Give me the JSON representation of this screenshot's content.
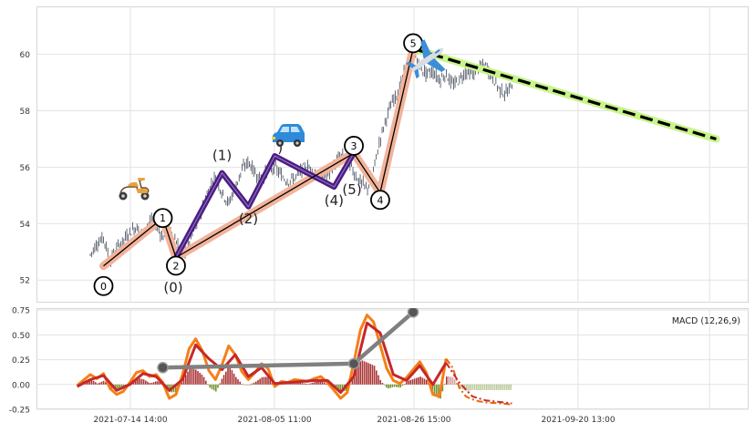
{
  "chart_data": [
    {
      "type": "candlestick",
      "panel": "price",
      "grid": true,
      "ylim": [
        51.2,
        61.7
      ],
      "y_ticks": [
        "52",
        "54",
        "56",
        "58",
        "60"
      ],
      "price_path": [
        [
          "2021-07-08",
          52.9
        ],
        [
          "2021-07-09",
          53.3
        ],
        [
          "2021-07-10",
          53.5
        ],
        [
          "2021-07-11",
          52.7
        ],
        [
          "2021-07-12",
          53.1
        ],
        [
          "2021-07-13",
          53.4
        ],
        [
          "2021-07-14",
          53.7
        ],
        [
          "2021-07-15",
          53.9
        ],
        [
          "2021-07-16",
          53.6
        ],
        [
          "2021-07-17",
          54.1
        ],
        [
          "2021-07-18",
          54.0
        ],
        [
          "2021-07-19",
          53.5
        ],
        [
          "2021-07-20",
          53.8
        ],
        [
          "2021-07-21",
          53.4
        ],
        [
          "2021-07-22",
          52.9
        ],
        [
          "2021-07-23",
          53.3
        ],
        [
          "2021-07-24",
          53.9
        ],
        [
          "2021-07-25",
          54.6
        ],
        [
          "2021-07-26",
          55.2
        ],
        [
          "2021-07-27",
          55.7
        ],
        [
          "2021-07-28",
          55.1
        ],
        [
          "2021-07-29",
          54.7
        ],
        [
          "2021-07-30",
          55.3
        ],
        [
          "2021-07-31",
          55.9
        ],
        [
          "2021-08-01",
          56.2
        ],
        [
          "2021-08-02",
          55.8
        ],
        [
          "2021-08-03",
          55.6
        ],
        [
          "2021-08-04",
          55.9
        ],
        [
          "2021-08-05",
          56.0
        ],
        [
          "2021-08-06",
          55.7
        ],
        [
          "2021-08-07",
          55.5
        ],
        [
          "2021-08-08",
          55.6
        ],
        [
          "2021-08-09",
          55.9
        ],
        [
          "2021-08-10",
          56.0
        ],
        [
          "2021-08-11",
          55.8
        ],
        [
          "2021-08-12",
          55.6
        ],
        [
          "2021-08-13",
          55.7
        ],
        [
          "2021-08-14",
          56.1
        ],
        [
          "2021-08-15",
          56.4
        ],
        [
          "2021-08-16",
          56.3
        ],
        [
          "2021-08-17",
          55.8
        ],
        [
          "2021-08-18",
          55.5
        ],
        [
          "2021-08-19",
          55.2
        ],
        [
          "2021-08-20",
          55.9
        ],
        [
          "2021-08-21",
          57.0
        ],
        [
          "2021-08-22",
          57.8
        ],
        [
          "2021-08-23",
          58.4
        ],
        [
          "2021-08-24",
          58.8
        ],
        [
          "2021-08-25",
          59.6
        ],
        [
          "2021-08-26",
          60.1
        ],
        [
          "2021-08-27",
          59.6
        ],
        [
          "2021-08-28",
          59.3
        ],
        [
          "2021-08-29",
          59.4
        ],
        [
          "2021-08-30",
          59.1
        ],
        [
          "2021-08-31",
          59.3
        ],
        [
          "2021-09-01",
          58.9
        ],
        [
          "2021-09-02",
          59.1
        ],
        [
          "2021-09-03",
          59.4
        ],
        [
          "2021-09-04",
          59.3
        ],
        [
          "2021-09-05",
          59.5
        ],
        [
          "2021-09-06",
          59.6
        ],
        [
          "2021-09-07",
          59.2
        ],
        [
          "2021-09-08",
          58.8
        ],
        [
          "2021-09-09",
          58.6
        ],
        [
          "2021-09-10",
          58.9
        ]
      ],
      "waves": {
        "primary": [
          {
            "label": "0",
            "x": "2021-07-10",
            "y": 52.5
          },
          {
            "label": "1",
            "x": "2021-07-19",
            "y": 54.2
          },
          {
            "label": "2",
            "x": "2021-07-21",
            "y": 52.8
          },
          {
            "label": "3",
            "x": "2021-08-17",
            "y": 56.5
          },
          {
            "label": "4",
            "x": "2021-08-21",
            "y": 55.1
          },
          {
            "label": "5",
            "x": "2021-08-26",
            "y": 60.2
          }
        ],
        "sub": [
          {
            "label": "(0)",
            "x": "2021-07-21",
            "y": 52.8
          },
          {
            "label": "(1)",
            "x": "2021-07-28",
            "y": 55.8
          },
          {
            "label": "(2)",
            "x": "2021-08-01",
            "y": 54.6
          },
          {
            "label": ")",
            "x": "2021-08-05",
            "y": 56.4
          },
          {
            "label": "(4)",
            "x": "2021-08-14",
            "y": 55.3
          },
          {
            "label": "(5)",
            "x": "2021-08-17",
            "y": 56.5
          }
        ],
        "projection": [
          [
            "2021-08-26",
            60.2
          ],
          [
            "2021-10-11",
            57.0
          ]
        ]
      },
      "icons": [
        "scooter-icon",
        "car-icon",
        "airplane-icon"
      ],
      "colors": {
        "candles": "#3d4656",
        "primary_wave_halo": "#f2b39a",
        "primary_wave_line": "#000000",
        "sub_wave_line": "#4b1d82",
        "projection_halo": "#c8f58a",
        "projection_line": "#000000"
      }
    },
    {
      "type": "macd",
      "panel": "indicator",
      "legend": "MACD (12,26,9)",
      "legend_position": "top-right",
      "grid": true,
      "ylim": [
        -0.25,
        0.77
      ],
      "y_ticks": [
        "-0.25",
        "0.00",
        "0.25",
        "0.50",
        "0.75"
      ],
      "x_ticks": [
        "2021-07-14 14:00",
        "2021-08-05 11:00",
        "2021-08-26 15:00",
        "2021-09-20 13:00"
      ],
      "macd_line": [
        [
          "2021-07-06",
          -0.01
        ],
        [
          "2021-07-08",
          0.1
        ],
        [
          "2021-07-09",
          0.06
        ],
        [
          "2021-07-10",
          0.11
        ],
        [
          "2021-07-11",
          -0.04
        ],
        [
          "2021-07-12",
          -0.1
        ],
        [
          "2021-07-13",
          -0.07
        ],
        [
          "2021-07-14",
          0.02
        ],
        [
          "2021-07-15",
          0.12
        ],
        [
          "2021-07-16",
          0.14
        ],
        [
          "2021-07-17",
          0.08
        ],
        [
          "2021-07-18",
          0.1
        ],
        [
          "2021-07-19",
          0.02
        ],
        [
          "2021-07-20",
          -0.14
        ],
        [
          "2021-07-21",
          -0.1
        ],
        [
          "2021-07-22",
          0.1
        ],
        [
          "2021-07-23",
          0.36
        ],
        [
          "2021-07-24",
          0.46
        ],
        [
          "2021-07-25",
          0.34
        ],
        [
          "2021-07-26",
          0.14
        ],
        [
          "2021-07-27",
          0.05
        ],
        [
          "2021-07-28",
          0.2
        ],
        [
          "2021-07-29",
          0.39
        ],
        [
          "2021-07-30",
          0.3
        ],
        [
          "2021-07-31",
          0.13
        ],
        [
          "2021-08-01",
          0.05
        ],
        [
          "2021-08-02",
          0.12
        ],
        [
          "2021-08-03",
          0.21
        ],
        [
          "2021-08-04",
          0.16
        ],
        [
          "2021-08-05",
          -0.02
        ],
        [
          "2021-08-06",
          0.03
        ],
        [
          "2021-08-07",
          0.02
        ],
        [
          "2021-08-08",
          0.05
        ],
        [
          "2021-08-09",
          0.04
        ],
        [
          "2021-08-10",
          0.03
        ],
        [
          "2021-08-11",
          0.06
        ],
        [
          "2021-08-12",
          0.08
        ],
        [
          "2021-08-13",
          0.02
        ],
        [
          "2021-08-14",
          -0.06
        ],
        [
          "2021-08-15",
          -0.14
        ],
        [
          "2021-08-16",
          -0.08
        ],
        [
          "2021-08-17",
          0.22
        ],
        [
          "2021-08-18",
          0.55
        ],
        [
          "2021-08-19",
          0.7
        ],
        [
          "2021-08-20",
          0.63
        ],
        [
          "2021-08-21",
          0.4
        ],
        [
          "2021-08-22",
          0.16
        ],
        [
          "2021-08-23",
          0.04
        ],
        [
          "2021-08-24",
          0.01
        ],
        [
          "2021-08-25",
          0.07
        ],
        [
          "2021-08-26",
          0.15
        ],
        [
          "2021-08-27",
          0.23
        ],
        [
          "2021-08-28",
          0.12
        ],
        [
          "2021-08-29",
          -0.1
        ],
        [
          "2021-08-30",
          -0.12
        ],
        [
          "2021-08-31",
          0.26
        ],
        [
          "2021-09-01",
          0.17
        ],
        [
          "2021-09-02",
          -0.03
        ],
        [
          "2021-09-03",
          -0.12
        ],
        [
          "2021-09-04",
          -0.15
        ],
        [
          "2021-09-05",
          -0.17
        ],
        [
          "2021-09-06",
          -0.18
        ],
        [
          "2021-09-08",
          -0.19
        ],
        [
          "2021-09-10",
          -0.2
        ]
      ],
      "signal_line": [
        [
          "2021-07-06",
          -0.02
        ],
        [
          "2021-07-08",
          0.05
        ],
        [
          "2021-07-10",
          0.09
        ],
        [
          "2021-07-12",
          -0.06
        ],
        [
          "2021-07-14",
          0.0
        ],
        [
          "2021-07-16",
          0.11
        ],
        [
          "2021-07-18",
          0.08
        ],
        [
          "2021-07-20",
          -0.06
        ],
        [
          "2021-07-22",
          0.05
        ],
        [
          "2021-07-24",
          0.4
        ],
        [
          "2021-07-26",
          0.26
        ],
        [
          "2021-07-28",
          0.15
        ],
        [
          "2021-07-30",
          0.3
        ],
        [
          "2021-08-01",
          0.08
        ],
        [
          "2021-08-03",
          0.17
        ],
        [
          "2021-08-05",
          0.01
        ],
        [
          "2021-08-07",
          0.02
        ],
        [
          "2021-08-09",
          0.03
        ],
        [
          "2021-08-11",
          0.04
        ],
        [
          "2021-08-13",
          0.04
        ],
        [
          "2021-08-15",
          -0.08
        ],
        [
          "2021-08-17",
          0.08
        ],
        [
          "2021-08-19",
          0.62
        ],
        [
          "2021-08-21",
          0.52
        ],
        [
          "2021-08-23",
          0.1
        ],
        [
          "2021-08-25",
          0.04
        ],
        [
          "2021-08-27",
          0.19
        ],
        [
          "2021-08-29",
          0.0
        ],
        [
          "2021-08-31",
          0.22
        ],
        [
          "2021-09-02",
          0.02
        ],
        [
          "2021-09-04",
          -0.12
        ],
        [
          "2021-09-06",
          -0.16
        ],
        [
          "2021-09-10",
          -0.19
        ]
      ],
      "divergence_line": [
        [
          "2021-07-19",
          0.17
        ],
        [
          "2021-08-17",
          0.21
        ],
        [
          "2021-08-26",
          0.73
        ]
      ],
      "colors": {
        "macd": "#f57f17",
        "signal": "#c62828",
        "projection": "#e8650e",
        "hist_positive": "#a52a2a",
        "hist_negative": "#6b8e23",
        "divergence": "#808080"
      }
    }
  ]
}
